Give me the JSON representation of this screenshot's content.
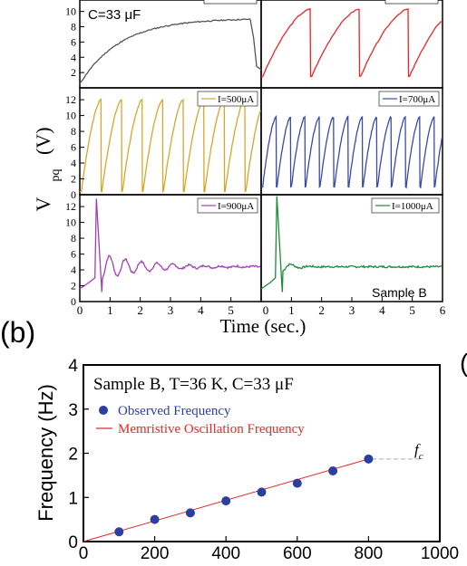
{
  "top_figure": {
    "ylabel_main": "V",
    "ylabel_sub": "pq",
    "ylabel_unit": "(V)",
    "xlabel": "Time (sec.)",
    "x_ticks": [
      "0",
      "1",
      "2",
      "3",
      "4",
      "5",
      "6"
    ],
    "y_ticks_mid": [
      "0",
      "2",
      "4",
      "6",
      "8",
      "10",
      "12"
    ],
    "y_ticks_bottom": [
      "0",
      "2",
      "4",
      "6",
      "8",
      "10",
      "12"
    ],
    "y_ticks_top": [
      "2",
      "4",
      "6",
      "8",
      "10"
    ],
    "capacitance_text": "C=33 μF",
    "sample_text": "Sample B",
    "panels": [
      {
        "id": "top-left",
        "legend": "",
        "color": "#555555"
      },
      {
        "id": "top-right",
        "legend": "",
        "color": "#e8262a"
      },
      {
        "id": "mid-left",
        "legend": "I=500μA",
        "color": "#d4a72c"
      },
      {
        "id": "mid-right",
        "legend": "I=700μA",
        "color": "#3a4aa8"
      },
      {
        "id": "bottom-left",
        "legend": "I=900μA",
        "color": "#a040b0"
      },
      {
        "id": "bottom-right",
        "legend": "I=1000μA",
        "color": "#1f8a3a"
      }
    ]
  },
  "panel_b_label": "(b)",
  "right_edge_glyph": "(",
  "chart_data": {
    "type": "scatter",
    "title": "Sample B, T=36 K, C=33 μF",
    "xlabel": "",
    "ylabel": "Frequency (Hz)",
    "xlim": [
      0,
      1000
    ],
    "ylim": [
      0,
      4
    ],
    "x_ticks": [
      "0",
      "200",
      "400",
      "600",
      "800",
      "1000"
    ],
    "y_ticks": [
      "0",
      "1",
      "2",
      "3",
      "4"
    ],
    "series": [
      {
        "name": "Observed Frequency",
        "kind": "points",
        "color": "#2b3fa0",
        "x": [
          100,
          200,
          300,
          400,
          500,
          600,
          700,
          800
        ],
        "y": [
          0.22,
          0.5,
          0.65,
          0.92,
          1.12,
          1.32,
          1.6,
          1.87
        ]
      },
      {
        "name": "Memristive Oscillation Frequency",
        "kind": "line",
        "color": "#e8262a",
        "x": [
          0,
          800
        ],
        "y": [
          0,
          1.87
        ]
      }
    ],
    "fc_label": "f",
    "fc_sub": "c",
    "fc_y": 1.87
  }
}
